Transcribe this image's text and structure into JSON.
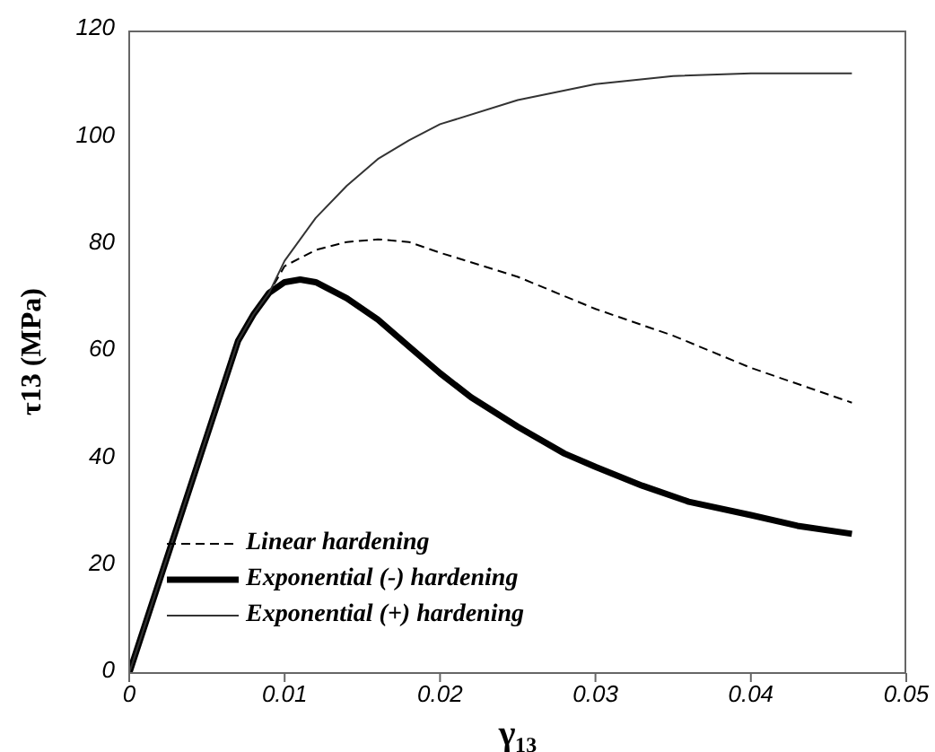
{
  "chart_data": {
    "type": "line",
    "xlabel": "γ₁₃",
    "ylabel": "τ13 (MPa)",
    "xlim": [
      0,
      0.05
    ],
    "xticks": [
      0,
      0.01,
      0.02,
      0.03,
      0.04,
      0.05
    ],
    "ylim": [
      0,
      120
    ],
    "yticks": [
      0,
      20,
      40,
      60,
      80,
      100,
      120
    ],
    "grid": false,
    "legend": "bottom left",
    "marker": "none",
    "series": [
      {
        "name": "Linear hardening",
        "color": "#000000",
        "line_style": "dashed",
        "x": [
          0,
          0.007,
          0.008,
          0.009,
          0.01,
          0.012,
          0.014,
          0.016,
          0.018,
          0.02,
          0.025,
          0.03,
          0.035,
          0.04,
          0.0465
        ],
        "values": [
          0,
          62,
          67,
          71,
          76,
          79,
          80.5,
          81,
          80.5,
          78.5,
          74,
          68,
          63,
          57,
          50.5
        ]
      },
      {
        "name": "Exponential (-) hardening",
        "color": "#000000",
        "line_style": "solid",
        "x": [
          0,
          0.007,
          0.008,
          0.009,
          0.01,
          0.011,
          0.012,
          0.014,
          0.016,
          0.018,
          0.02,
          0.022,
          0.025,
          0.028,
          0.03,
          0.033,
          0.036,
          0.04,
          0.043,
          0.0465
        ],
        "values": [
          0,
          62,
          67,
          71,
          73,
          73.5,
          73,
          70,
          66,
          61,
          56,
          51.5,
          46,
          41,
          38.5,
          35,
          32,
          29.5,
          27.5,
          26
        ]
      },
      {
        "name": "Exponential (+) hardening",
        "color": "#333333",
        "line_style": "solid",
        "x": [
          0,
          0.007,
          0.008,
          0.009,
          0.01,
          0.012,
          0.014,
          0.016,
          0.018,
          0.02,
          0.025,
          0.03,
          0.035,
          0.04,
          0.0465
        ],
        "values": [
          0,
          62,
          67,
          71,
          77,
          85,
          91,
          96,
          99.5,
          102.5,
          107,
          110,
          111.5,
          112,
          112
        ]
      }
    ]
  }
}
